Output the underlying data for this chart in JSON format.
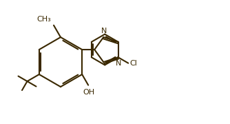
{
  "bg_color": "#ffffff",
  "bond_color": "#3a2800",
  "lw": 1.5,
  "fs": 8.0,
  "figsize": [
    3.34,
    1.8
  ],
  "dpi": 100,
  "xlim": [
    0,
    334
  ],
  "ylim": [
    0,
    180
  ]
}
